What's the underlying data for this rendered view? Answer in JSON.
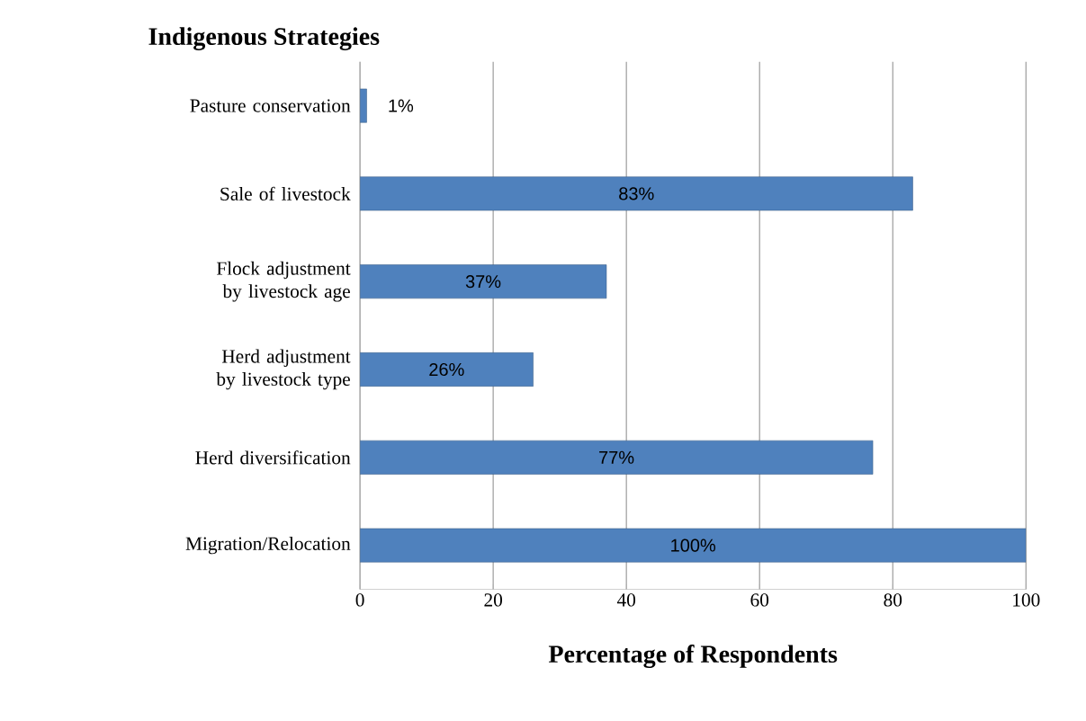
{
  "chart_data": {
    "type": "bar",
    "orientation": "horizontal",
    "ylabel": "Indigenous Strategies",
    "xlabel": "Percentage of Respondents",
    "categories": [
      "Pasture conservation",
      "Sale of livestock",
      "Flock adjustment by livestock age",
      "Herd adjustment by livestock type",
      "Herd diversification",
      "Migration/Relocation"
    ],
    "values": [
      1,
      83,
      37,
      26,
      77,
      100
    ],
    "value_labels": [
      "1%",
      "83%",
      "37%",
      "26%",
      "77%",
      "100%"
    ],
    "color": "#4f81bd",
    "xlim": [
      0,
      100
    ],
    "xticks": [
      0,
      20,
      40,
      60,
      80,
      100
    ],
    "grid": "x"
  }
}
